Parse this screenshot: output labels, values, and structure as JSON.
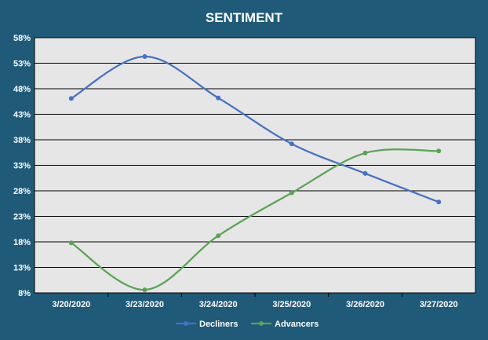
{
  "chart_data": {
    "type": "line",
    "title": "SENTIMENT",
    "xlabel": "",
    "ylabel": "",
    "categories": [
      "3/20/2020",
      "3/23/2020",
      "3/24/2020",
      "3/25/2020",
      "3/26/2020",
      "3/27/2020"
    ],
    "yticks": [
      "8%",
      "13%",
      "18%",
      "23%",
      "28%",
      "33%",
      "38%",
      "43%",
      "48%",
      "53%",
      "58%"
    ],
    "ylim": [
      8,
      58
    ],
    "ytick_step": 5,
    "grid": true,
    "legend_position": "bottom",
    "series": [
      {
        "name": "Decliners",
        "color": "#4472c4",
        "values": [
          46.1,
          54.3,
          46.2,
          37.2,
          31.4,
          25.8
        ]
      },
      {
        "name": "Advancers",
        "color": "#5aa454",
        "values": [
          17.8,
          8.6,
          19.2,
          27.6,
          35.4,
          35.8
        ]
      }
    ]
  },
  "colors": {
    "background": "#1f5a78",
    "plot_area": "#e6e6e6",
    "gridline": "#000000"
  }
}
